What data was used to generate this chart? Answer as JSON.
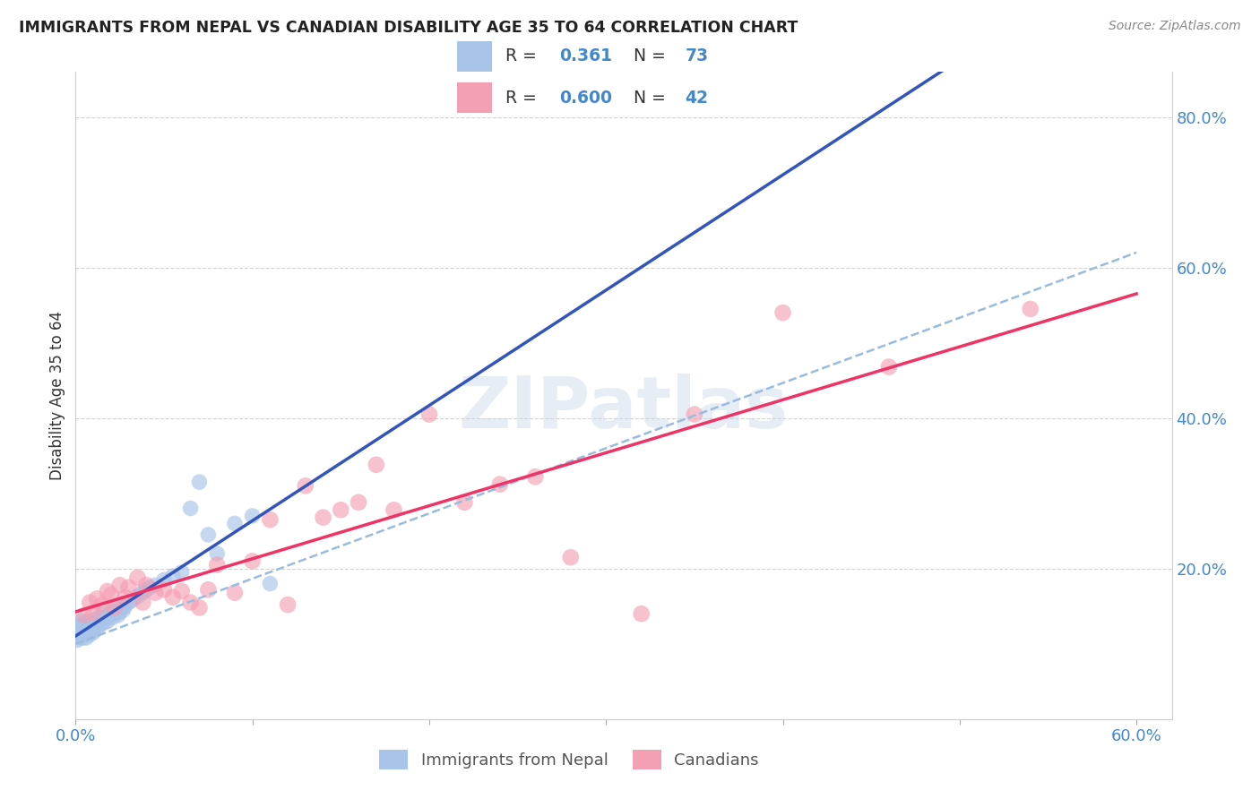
{
  "title": "IMMIGRANTS FROM NEPAL VS CANADIAN DISABILITY AGE 35 TO 64 CORRELATION CHART",
  "source": "Source: ZipAtlas.com",
  "ylabel_label": "Disability Age 35 to 64",
  "xlim": [
    0.0,
    0.62
  ],
  "ylim": [
    0.0,
    0.86
  ],
  "xticks": [
    0.0,
    0.1,
    0.2,
    0.3,
    0.4,
    0.5,
    0.6
  ],
  "yticks": [
    0.0,
    0.2,
    0.4,
    0.6,
    0.8
  ],
  "xticklabels": [
    "0.0%",
    "",
    "",
    "",
    "",
    "",
    "60.0%"
  ],
  "yticklabels_right": [
    "",
    "20.0%",
    "40.0%",
    "60.0%",
    "80.0%"
  ],
  "nepal_R": 0.361,
  "nepal_N": 73,
  "canada_R": 0.6,
  "canada_N": 42,
  "nepal_color": "#a8c4e8",
  "canada_color": "#f4a0b4",
  "nepal_line_color": "#3355bb",
  "canada_line_color": "#ee3366",
  "dashed_line_color": "#99bbdd",
  "watermark": "ZIPatlas",
  "nepal_points_x": [
    0.001,
    0.001,
    0.002,
    0.002,
    0.002,
    0.003,
    0.003,
    0.003,
    0.003,
    0.004,
    0.004,
    0.004,
    0.004,
    0.005,
    0.005,
    0.005,
    0.005,
    0.006,
    0.006,
    0.006,
    0.006,
    0.007,
    0.007,
    0.007,
    0.008,
    0.008,
    0.008,
    0.008,
    0.009,
    0.009,
    0.009,
    0.01,
    0.01,
    0.01,
    0.011,
    0.011,
    0.012,
    0.012,
    0.013,
    0.014,
    0.015,
    0.015,
    0.016,
    0.017,
    0.018,
    0.019,
    0.02,
    0.021,
    0.022,
    0.023,
    0.024,
    0.025,
    0.026,
    0.027,
    0.028,
    0.03,
    0.032,
    0.034,
    0.036,
    0.038,
    0.04,
    0.042,
    0.045,
    0.05,
    0.055,
    0.06,
    0.065,
    0.07,
    0.075,
    0.08,
    0.09,
    0.1,
    0.11
  ],
  "nepal_points_y": [
    0.12,
    0.105,
    0.115,
    0.108,
    0.125,
    0.118,
    0.112,
    0.122,
    0.13,
    0.115,
    0.108,
    0.118,
    0.125,
    0.112,
    0.12,
    0.128,
    0.115,
    0.118,
    0.122,
    0.13,
    0.108,
    0.115,
    0.125,
    0.118,
    0.12,
    0.128,
    0.115,
    0.112,
    0.118,
    0.125,
    0.122,
    0.118,
    0.128,
    0.115,
    0.125,
    0.132,
    0.12,
    0.128,
    0.135,
    0.125,
    0.132,
    0.14,
    0.128,
    0.135,
    0.13,
    0.138,
    0.142,
    0.135,
    0.14,
    0.145,
    0.138,
    0.142,
    0.148,
    0.145,
    0.15,
    0.155,
    0.158,
    0.162,
    0.165,
    0.168,
    0.172,
    0.175,
    0.178,
    0.185,
    0.19,
    0.195,
    0.28,
    0.315,
    0.245,
    0.22,
    0.26,
    0.27,
    0.18
  ],
  "canada_points_x": [
    0.005,
    0.008,
    0.01,
    0.012,
    0.015,
    0.018,
    0.02,
    0.022,
    0.025,
    0.028,
    0.03,
    0.035,
    0.038,
    0.04,
    0.045,
    0.05,
    0.055,
    0.06,
    0.065,
    0.07,
    0.075,
    0.08,
    0.09,
    0.1,
    0.11,
    0.12,
    0.13,
    0.14,
    0.15,
    0.16,
    0.17,
    0.18,
    0.2,
    0.22,
    0.24,
    0.26,
    0.28,
    0.32,
    0.35,
    0.4,
    0.46,
    0.54
  ],
  "canada_points_y": [
    0.138,
    0.155,
    0.142,
    0.16,
    0.152,
    0.17,
    0.165,
    0.148,
    0.178,
    0.162,
    0.175,
    0.188,
    0.155,
    0.178,
    0.168,
    0.172,
    0.162,
    0.17,
    0.155,
    0.148,
    0.172,
    0.205,
    0.168,
    0.21,
    0.265,
    0.152,
    0.31,
    0.268,
    0.278,
    0.288,
    0.338,
    0.278,
    0.405,
    0.288,
    0.312,
    0.322,
    0.215,
    0.14,
    0.405,
    0.54,
    0.468,
    0.545
  ],
  "background_color": "#ffffff",
  "grid_color": "#cccccc"
}
